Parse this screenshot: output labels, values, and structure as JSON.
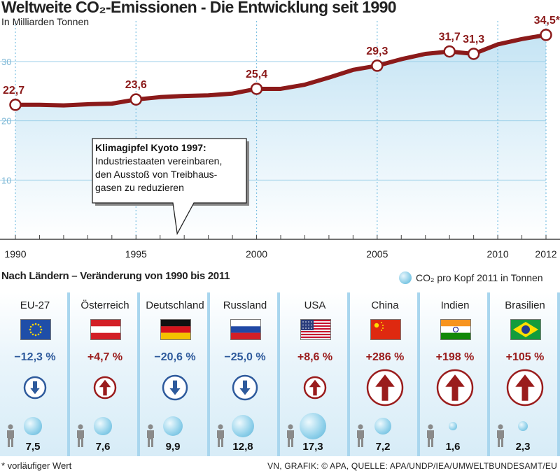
{
  "title": "Weltweite CO₂-Emissionen - Die Entwicklung seit 1990",
  "subtitle": "In Milliarden Tonnen",
  "chart_data": {
    "type": "line",
    "title": "Weltweite CO₂-Emissionen - Die Entwicklung seit 1990",
    "ylabel": "In Milliarden Tonnen",
    "xlim": [
      1990,
      2012
    ],
    "ylim": [
      0,
      35
    ],
    "yticks": [
      "10",
      "20",
      "30"
    ],
    "ytick_values": [
      10,
      20,
      30
    ],
    "xticks": [
      "1990",
      "1995",
      "2000",
      "2005",
      "2010",
      "2012"
    ],
    "xtick_values": [
      1990,
      1995,
      2000,
      2005,
      2010,
      2012
    ],
    "series": [
      {
        "name": "CO₂-Emissionen",
        "x": [
          1990,
          1991,
          1992,
          1993,
          1994,
          1995,
          1996,
          1997,
          1998,
          1999,
          2000,
          2001,
          2002,
          2003,
          2004,
          2005,
          2006,
          2007,
          2008,
          2009,
          2010,
          2011,
          2012
        ],
        "values": [
          22.7,
          22.7,
          22.6,
          22.8,
          22.9,
          23.6,
          24.0,
          24.2,
          24.3,
          24.6,
          25.4,
          25.4,
          26.1,
          27.3,
          28.6,
          29.3,
          30.4,
          31.3,
          31.7,
          31.3,
          32.9,
          33.8,
          34.5
        ]
      }
    ],
    "labeled_points": [
      {
        "x": 1990,
        "y": 22.7,
        "label": "22,7"
      },
      {
        "x": 1995,
        "y": 23.6,
        "label": "23,6"
      },
      {
        "x": 2000,
        "y": 25.4,
        "label": "25,4"
      },
      {
        "x": 2005,
        "y": 29.3,
        "label": "29,3"
      },
      {
        "x": 2008,
        "y": 31.7,
        "label": "31,7"
      },
      {
        "x": 2009,
        "y": 31.3,
        "label": "31,3"
      },
      {
        "x": 2012,
        "y": 34.5,
        "label": "34,5*"
      }
    ],
    "annotation": {
      "title": "Klimagipfel Kyoto 1997:",
      "text": "Industriestaaten vereinbaren, den Ausstoß von Treibhaus-gasen zu reduzieren",
      "x": 1997
    }
  },
  "callout": {
    "title": "Klimagipfel Kyoto 1997:",
    "lines": [
      "Industriestaaten vereinbaren,",
      "den Ausstoß von Treibhaus-",
      "gasen zu reduzieren"
    ]
  },
  "section_title": "Nach Ländern – Veränderung von 1990 bis 2011",
  "legend_label": "CO₂ pro Kopf 2011 in Tonnen",
  "countries": [
    {
      "name": "EU-27",
      "change": "−12,3 %",
      "change_value": -12.3,
      "per_capita": "7,5",
      "per_capita_value": 7.5
    },
    {
      "name": "Österreich",
      "change": "+4,7 %",
      "change_value": 4.7,
      "per_capita": "7,6",
      "per_capita_value": 7.6
    },
    {
      "name": "Deutschland",
      "change": "−20,6 %",
      "change_value": -20.6,
      "per_capita": "9,9",
      "per_capita_value": 9.9
    },
    {
      "name": "Russland",
      "change": "−25,0 %",
      "change_value": -25.0,
      "per_capita": "12,8",
      "per_capita_value": 12.8
    },
    {
      "name": "USA",
      "change": "+8,6 %",
      "change_value": 8.6,
      "per_capita": "17,3",
      "per_capita_value": 17.3
    },
    {
      "name": "China",
      "change": "+286 %",
      "change_value": 286,
      "per_capita": "7,2",
      "per_capita_value": 7.2
    },
    {
      "name": "Indien",
      "change": "+198 %",
      "change_value": 198,
      "per_capita": "1,6",
      "per_capita_value": 1.6
    },
    {
      "name": "Brasilien",
      "change": "+105 %",
      "change_value": 105,
      "per_capita": "2,3",
      "per_capita_value": 2.3
    }
  ],
  "colors": {
    "line": "#8b1a1a",
    "negative": "#2e5a9c",
    "positive": "#9a1c1c",
    "area": "#d6ebf6"
  },
  "footnote": "* vorläufiger Wert",
  "source": "VN, GRAFIK: © APA, QUELLE: APA/UNDP/IEA/UMWELTBUNDESAMT/EU"
}
